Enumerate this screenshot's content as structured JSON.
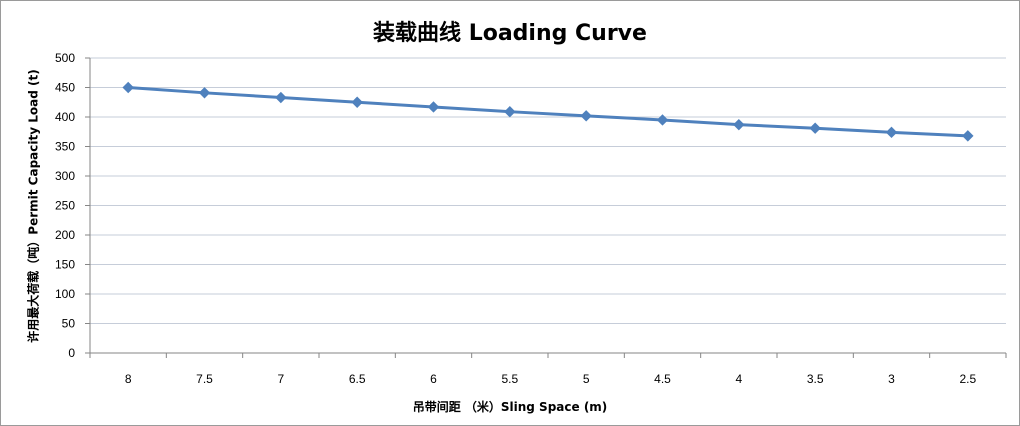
{
  "chart_data": {
    "type": "line",
    "title": "装载曲线 Loading Curve",
    "xlabel": "吊带间距 （米）Sling Space (m)",
    "ylabel": "许用最大荷载（吨）Permit Capacity Load (t)",
    "categories": [
      "8",
      "7.5",
      "7",
      "6.5",
      "6",
      "5.5",
      "5",
      "4.5",
      "4",
      "3.5",
      "3",
      "2.5"
    ],
    "series": [
      {
        "values": [
          450,
          441,
          433,
          425,
          417,
          409,
          402,
          395,
          387,
          381,
          374,
          368
        ]
      }
    ],
    "ylim": [
      0,
      500
    ],
    "yticks": [
      0,
      50,
      100,
      150,
      200,
      250,
      300,
      350,
      400,
      450,
      500
    ],
    "grid": true,
    "legend": "none",
    "marker": "diamond",
    "colors": {
      "line": "#4F81BD",
      "grid": "#C6CDD9",
      "axis": "#868686"
    }
  }
}
